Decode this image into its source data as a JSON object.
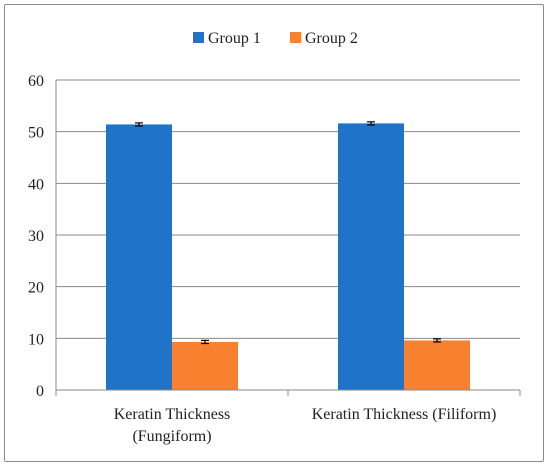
{
  "chart_data": {
    "type": "bar",
    "categories": [
      "Keratin Thickness (Fungiform)",
      "Keratin Thickness (Filiform)"
    ],
    "category_label_lines": [
      [
        "Keratin Thickness",
        "(Fungiform)"
      ],
      [
        "Keratin Thickness (Filiform)"
      ]
    ],
    "series": [
      {
        "name": "Group 1",
        "values": [
          51.4,
          51.6
        ],
        "errors": [
          0.3,
          0.3
        ],
        "color": "#1f73c9"
      },
      {
        "name": "Group 2",
        "values": [
          9.3,
          9.6
        ],
        "errors": [
          0.3,
          0.3
        ],
        "color": "#f7812e"
      }
    ],
    "title": "",
    "xlabel": "",
    "ylabel": "",
    "ylim": [
      0,
      60
    ],
    "yticks": [
      "0",
      "10",
      "20",
      "30",
      "40",
      "50",
      "60"
    ],
    "grid": true,
    "legend_position": "top"
  }
}
